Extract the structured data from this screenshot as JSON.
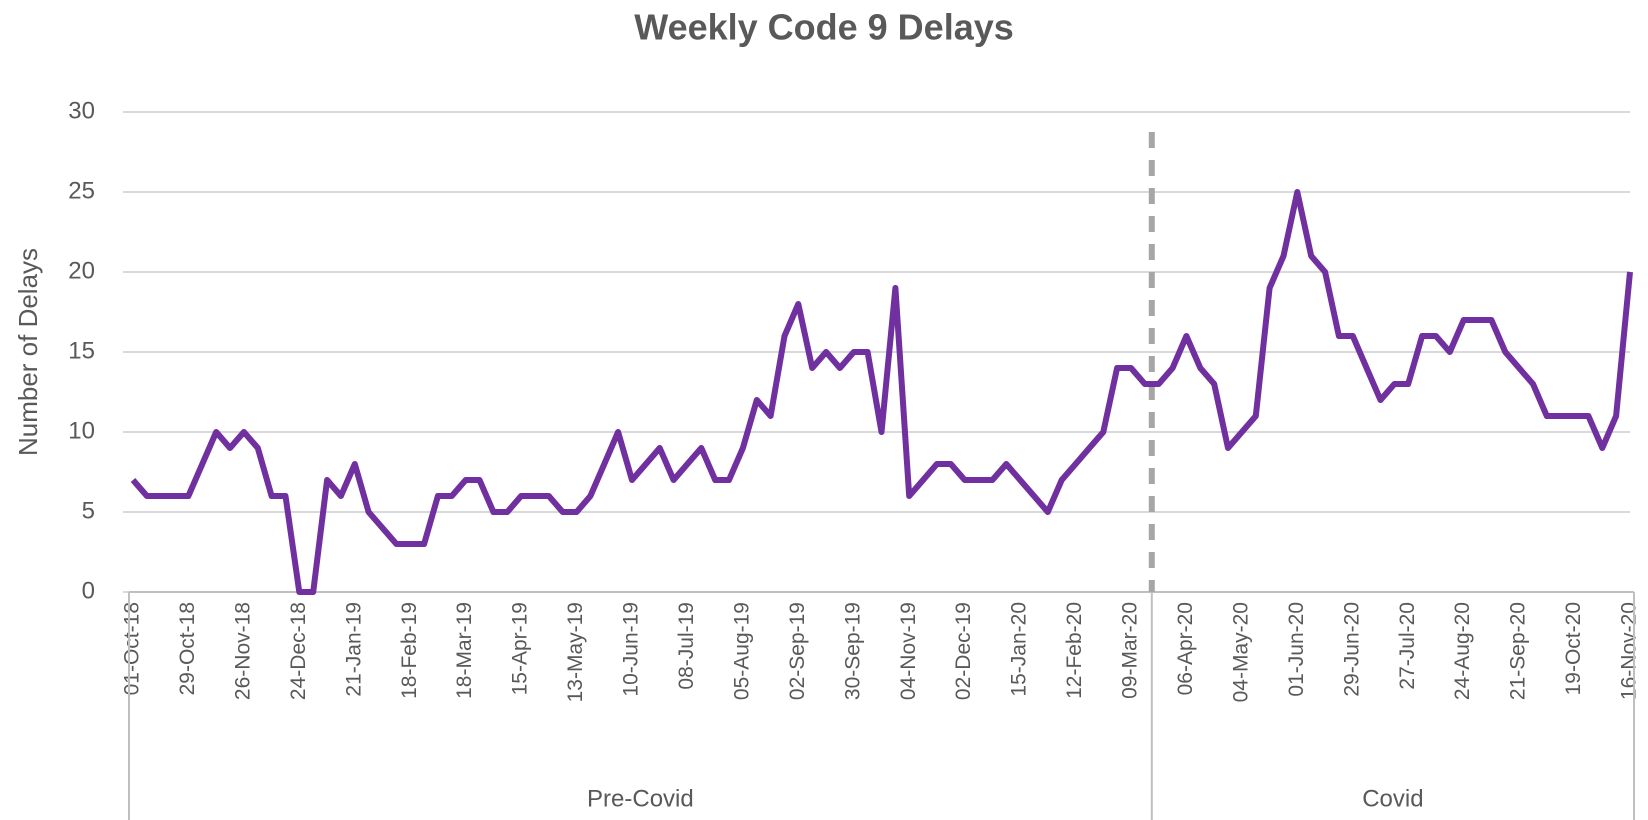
{
  "chart_data": {
    "type": "line",
    "title": "Weekly Code 9 Delays",
    "y_label": "Number of Delays",
    "categories": [
      "01-Oct-18",
      null,
      null,
      null,
      "29-Oct-18",
      null,
      null,
      null,
      "26-Nov-18",
      null,
      null,
      null,
      "24-Dec-18",
      null,
      null,
      null,
      "21-Jan-19",
      null,
      null,
      null,
      "18-Feb-19",
      null,
      null,
      null,
      "18-Mar-19",
      null,
      null,
      null,
      "15-Apr-19",
      null,
      null,
      null,
      "13-May-19",
      null,
      null,
      null,
      "10-Jun-19",
      null,
      null,
      null,
      "08-Jul-19",
      null,
      null,
      null,
      "05-Aug-19",
      null,
      null,
      null,
      "02-Sep-19",
      null,
      null,
      null,
      "30-Sep-19",
      null,
      null,
      null,
      "04-Nov-19",
      null,
      null,
      null,
      "02-Dec-19",
      null,
      null,
      null,
      "15-Jan-20",
      null,
      null,
      null,
      "12-Feb-20",
      null,
      null,
      null,
      "09-Mar-20",
      null,
      null,
      null,
      "06-Apr-20",
      null,
      null,
      null,
      "04-May-20",
      null,
      null,
      null,
      "01-Jun-20",
      null,
      null,
      null,
      "29-Jun-20",
      null,
      null,
      null,
      "27-Jul-20",
      null,
      null,
      null,
      "24-Aug-20",
      null,
      null,
      null,
      "21-Sep-20",
      null,
      null,
      null,
      "19-Oct-20",
      null,
      null,
      null,
      "16-Nov-20"
    ],
    "groups": [
      {
        "label": "Pre-Covid",
        "count": 74
      },
      {
        "label": "Covid",
        "count": 35
      }
    ],
    "series": [
      {
        "name": "Code 9 Delays",
        "color": "#7030a0",
        "values": [
          7,
          6,
          6,
          6,
          6,
          8,
          10,
          9,
          10,
          9,
          6,
          6,
          0,
          0,
          7,
          6,
          8,
          5,
          4,
          3,
          3,
          3,
          6,
          6,
          7,
          7,
          5,
          5,
          6,
          6,
          6,
          5,
          5,
          6,
          8,
          10,
          7,
          8,
          9,
          7,
          8,
          9,
          7,
          7,
          9,
          12,
          11,
          16,
          18,
          14,
          15,
          14,
          15,
          15,
          10,
          19,
          6,
          7,
          8,
          8,
          7,
          7,
          7,
          8,
          7,
          6,
          5,
          7,
          8,
          9,
          10,
          14,
          14,
          13,
          13,
          14,
          16,
          14,
          13,
          9,
          10,
          11,
          19,
          21,
          25,
          21,
          20,
          16,
          16,
          14,
          12,
          13,
          13,
          16,
          16,
          15,
          17,
          17,
          17,
          15,
          14,
          13,
          11,
          11,
          11,
          11,
          9,
          11,
          20
        ]
      }
    ],
    "ylim": [
      0,
      30
    ],
    "yticks": [
      0,
      5,
      10,
      15,
      20,
      25,
      30
    ],
    "grid": true,
    "legend": false
  }
}
